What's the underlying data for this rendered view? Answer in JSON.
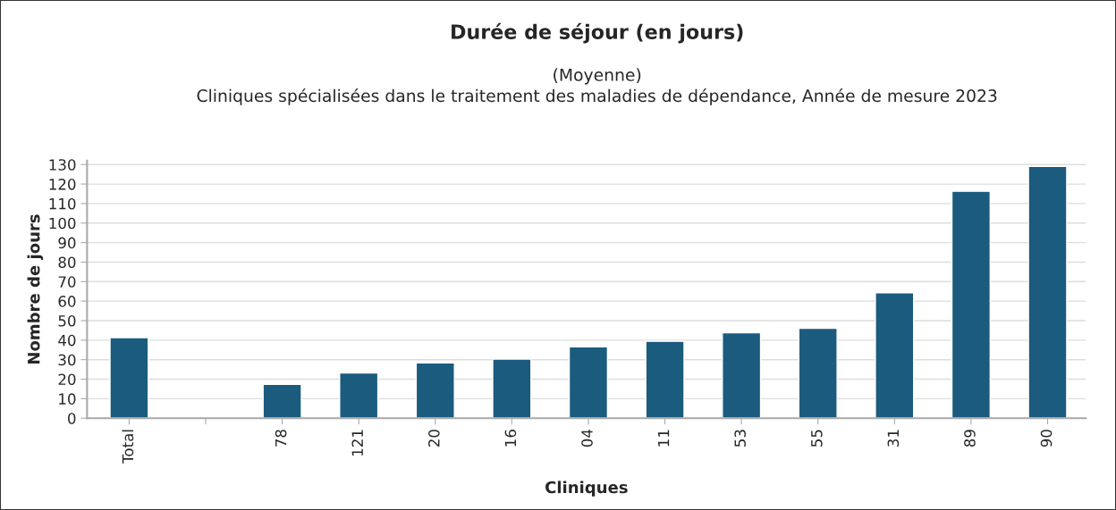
{
  "chart_data": {
    "type": "bar",
    "title": "Durée de séjour (en jours)",
    "subtitle": "(Moyenne)\nCliniques spécialisées dans le traitement des maladies de dépendance, Année de mesure 2023",
    "xlabel": "Cliniques",
    "ylabel": "Nombre de jours",
    "categories": [
      "Total",
      null,
      "78",
      "121",
      "20",
      "16",
      "04",
      "11",
      "53",
      "55",
      "31",
      "89",
      "90"
    ],
    "values": [
      41.3,
      null,
      17.4,
      23.2,
      28.3,
      30.3,
      36.6,
      39.4,
      43.8,
      46.1,
      64.3,
      116.3,
      129.0
    ],
    "color": "#1b5b7e",
    "ylim": [
      0,
      132
    ],
    "yticks": [
      0,
      10,
      20,
      30,
      40,
      50,
      60,
      70,
      80,
      90,
      100,
      110,
      120,
      130
    ],
    "grid": "y"
  }
}
